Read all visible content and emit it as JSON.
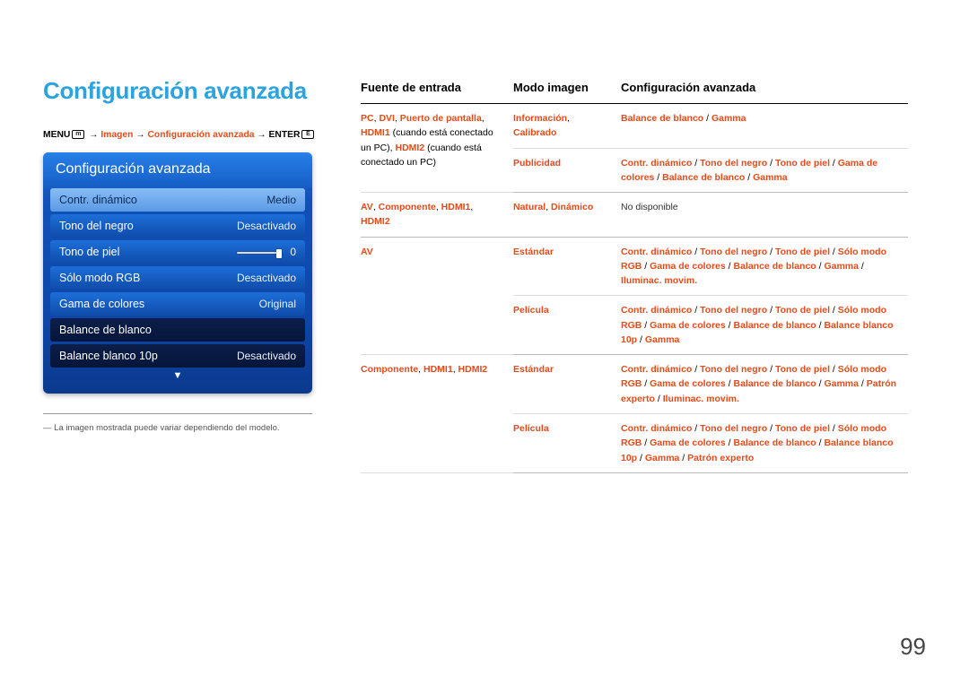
{
  "page": {
    "number": "99"
  },
  "title": "Configuración avanzada",
  "breadcrumb": {
    "menu": "MENU",
    "arrow": "→",
    "seg1": "Imagen",
    "seg2": "Configuración avanzada",
    "enter": "ENTER"
  },
  "osd": {
    "title": "Configuración avanzada",
    "rows": [
      {
        "label": "Contr. dinámico",
        "value": "Medio",
        "style": "light"
      },
      {
        "label": "Tono del negro",
        "value": "Desactivado",
        "style": "normal"
      },
      {
        "label": "Tono de piel",
        "value": "0",
        "style": "normal",
        "hasSlider": true
      },
      {
        "label": "Sólo modo RGB",
        "value": "Desactivado",
        "style": "normal"
      },
      {
        "label": "Gama de colores",
        "value": "Original",
        "style": "normal"
      },
      {
        "label": "Balance de blanco",
        "value": "",
        "style": "sel-dark"
      },
      {
        "label": "Balance blanco 10p",
        "value": "Desactivado",
        "style": "sel-dark"
      }
    ],
    "arrow": "▼"
  },
  "footnote": "― La imagen mostrada puede variar dependiendo del modelo.",
  "table": {
    "headers": [
      "Fuente de entrada",
      "Modo imagen",
      "Configuración avanzada"
    ],
    "rows": [
      {
        "source_html": "<span class='o'>PC</span><span class='bk'>, </span><span class='o'>DVI</span><span class='bk'>, </span><span class='o'>Puerto de pantalla</span><span class='bk'>, </span><span class='o'>HDMI1</span> <span class='bk'>(cuando está conectado un PC), </span><span class='o'>HDMI2</span> <span class='bk'>(cuando está conectado un PC)</span>",
        "mode": "<span class='o'>Información</span><span class='bk'>, </span><span class='o'>Calibrado</span>",
        "conf": "<span class='o'>Balance de blanco</span><span class='bk'> / </span><span class='o'>Gamma</span>",
        "rowspan": 2,
        "inner": true
      },
      {
        "mode": "<span class='o'>Publicidad</span>",
        "conf": "<span class='o'>Contr. dinámico</span><span class='bk'> / </span><span class='o'>Tono del negro</span><span class='bk'> / </span><span class='o'>Tono de piel</span><span class='bk'> / </span><span class='o'>Gama de colores</span><span class='bk'> / </span><span class='o'>Balance de blanco</span><span class='bk'> / </span><span class='o'>Gamma</span>"
      },
      {
        "source_html": "<span class='o'>AV</span><span class='bk'>, </span><span class='o'>Componente</span><span class='bk'>, </span><span class='o'>HDMI1</span><span class='bk'>, </span><span class='o'>HDMI2</span>",
        "mode": "<span class='o'>Natural</span><span class='bk'>, </span><span class='o'>Dinámico</span>",
        "conf": "<span class='nodisp'>No disponible</span>"
      },
      {
        "source_html": "<span class='o'>AV</span>",
        "mode": "<span class='o'>Estándar</span>",
        "conf": "<span class='o'>Contr. dinámico</span><span class='bk'> / </span><span class='o'>Tono del negro</span><span class='bk'> / </span><span class='o'>Tono de piel</span><span class='bk'> / </span><span class='o'>Sólo modo RGB</span><span class='bk'> / </span><span class='o'>Gama de colores</span><span class='bk'> / </span><span class='o'>Balance de blanco</span><span class='bk'> / </span><span class='o'>Gamma</span><span class='bk'> / </span><span class='o'>Iluminac. movim.</span>",
        "rowspan": 2,
        "inner": true
      },
      {
        "mode": "<span class='o'>Película</span>",
        "conf": "<span class='o'>Contr. dinámico</span><span class='bk'> / </span><span class='o'>Tono del negro</span><span class='bk'> / </span><span class='o'>Tono de piel</span><span class='bk'> / </span><span class='o'>Sólo modo RGB</span><span class='bk'> / </span><span class='o'>Gama de colores</span><span class='bk'> / </span><span class='o'>Balance de blanco</span><span class='bk'> / </span><span class='o'>Balance blanco 10p</span><span class='bk'> / </span><span class='o'>Gamma</span>"
      },
      {
        "source_html": "<span class='o'>Componente</span><span class='bk'>, </span><span class='o'>HDMI1</span><span class='bk'>, </span><span class='o'>HDMI2</span>",
        "mode": "<span class='o'>Estándar</span>",
        "conf": "<span class='o'>Contr. dinámico</span><span class='bk'> / </span><span class='o'>Tono del negro</span><span class='bk'> / </span><span class='o'>Tono de piel</span><span class='bk'> / </span><span class='o'>Sólo modo RGB</span><span class='bk'> / </span><span class='o'>Gama de colores</span><span class='bk'> / </span><span class='o'>Balance de blanco</span><span class='bk'> / </span><span class='o'>Gamma</span><span class='bk'> / </span><span class='o'>Patrón experto</span><span class='bk'> / </span><span class='o'>Iluminac. movim.</span>",
        "rowspan": 2,
        "inner": true
      },
      {
        "mode": "<span class='o'>Película</span>",
        "conf": "<span class='o'>Contr. dinámico</span><span class='bk'> / </span><span class='o'>Tono del negro</span><span class='bk'> / </span><span class='o'>Tono de piel</span><span class='bk'> / </span><span class='o'>Sólo modo RGB</span><span class='bk'> / </span><span class='o'>Gama de colores</span><span class='bk'> / </span><span class='o'>Balance de blanco</span><span class='bk'> / </span><span class='o'>Balance blanco 10p</span><span class='bk'> / </span><span class='o'>Gamma</span><span class='bk'> / </span><span class='o'>Patrón experto</span>"
      }
    ]
  },
  "colors": {
    "title": "#2aa3de",
    "orange": "#e64a19",
    "osd_grad_top": "#2780e8",
    "osd_grad_mid": "#1151b8",
    "osd_grad_dark": "#06153a"
  }
}
